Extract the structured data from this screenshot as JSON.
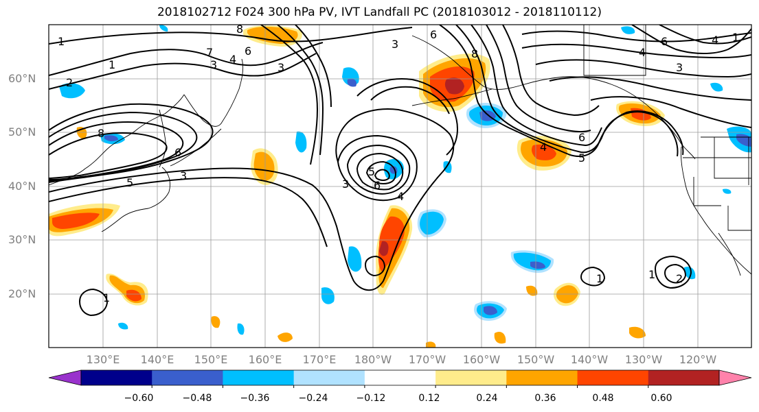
{
  "title": "2018102712 F024 300 hPa PV, IVT Landfall PC (2018103012 - 2018110112)",
  "latitude_labels": [
    "60°N",
    "50°N",
    "40°N",
    "30°N",
    "20°N"
  ],
  "longitude_labels": [
    "130°E",
    "140°E",
    "150°E",
    "160°E",
    "170°E",
    "180°W",
    "170°W",
    "160°W",
    "150°W",
    "140°W",
    "130°W",
    "120°W"
  ],
  "contour_labels": [
    "1",
    "2",
    "3",
    "4",
    "5",
    "6",
    "7",
    "8"
  ],
  "colorbar": {
    "tick_labels": [
      "−0.60",
      "−0.48",
      "−0.36",
      "−0.24",
      "−0.12",
      "0.12",
      "0.24",
      "0.36",
      "0.48",
      "0.60"
    ],
    "colors": [
      "#9932cc",
      "#00008b",
      "#3a5fcd",
      "#00bfff",
      "#b0e2ff",
      "#ffffff",
      "#ffec8b",
      "#ffa500",
      "#ff4500",
      "#b22222",
      "#ff82ab"
    ]
  }
}
